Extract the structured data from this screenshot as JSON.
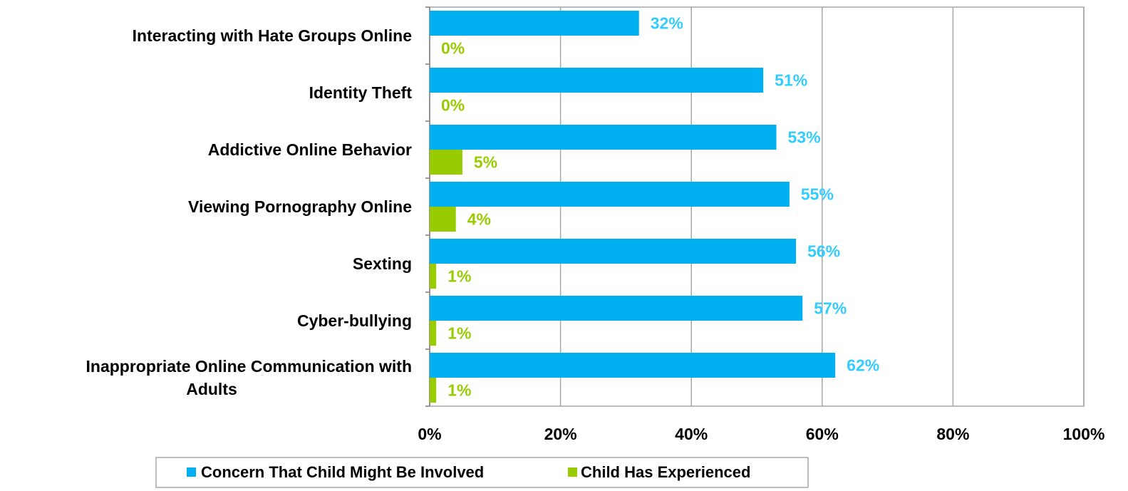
{
  "chart_data": {
    "type": "bar",
    "orientation": "horizontal",
    "categories": [
      "Interacting with Hate Groups Online",
      "Identity Theft",
      "Addictive Online Behavior",
      "Viewing Pornography Online",
      "Sexting",
      "Cyber-bullying",
      "Inappropriate Online Communication with Adults"
    ],
    "category_label_lines": [
      [
        "Interacting with Hate Groups Online"
      ],
      [
        "Identity Theft"
      ],
      [
        "Addictive Online Behavior"
      ],
      [
        "Viewing Pornography Online"
      ],
      [
        "Sexting"
      ],
      [
        "Cyber-bullying"
      ],
      [
        "Inappropriate Online Communication with",
        "Adults"
      ]
    ],
    "series": [
      {
        "name": "Concern That Child Might Be Involved",
        "color": "#00b0f0",
        "label_color": "#33ccff",
        "values": [
          32,
          51,
          53,
          55,
          56,
          57,
          62
        ],
        "labels": [
          "32%",
          "51%",
          "53%",
          "55%",
          "56%",
          "57%",
          "62%"
        ]
      },
      {
        "name": "Child Has Experienced",
        "color": "#99cc00",
        "label_color": "#99cc00",
        "values": [
          0,
          0,
          5,
          4,
          1,
          1,
          1
        ],
        "labels": [
          "0%",
          "0%",
          "5%",
          "4%",
          "1%",
          "1%",
          "1%"
        ]
      }
    ],
    "xlim": [
      0,
      100
    ],
    "xticks": [
      "0%",
      "20%",
      "40%",
      "60%",
      "80%",
      "100%"
    ],
    "grid": true,
    "legend_position": "bottom"
  }
}
